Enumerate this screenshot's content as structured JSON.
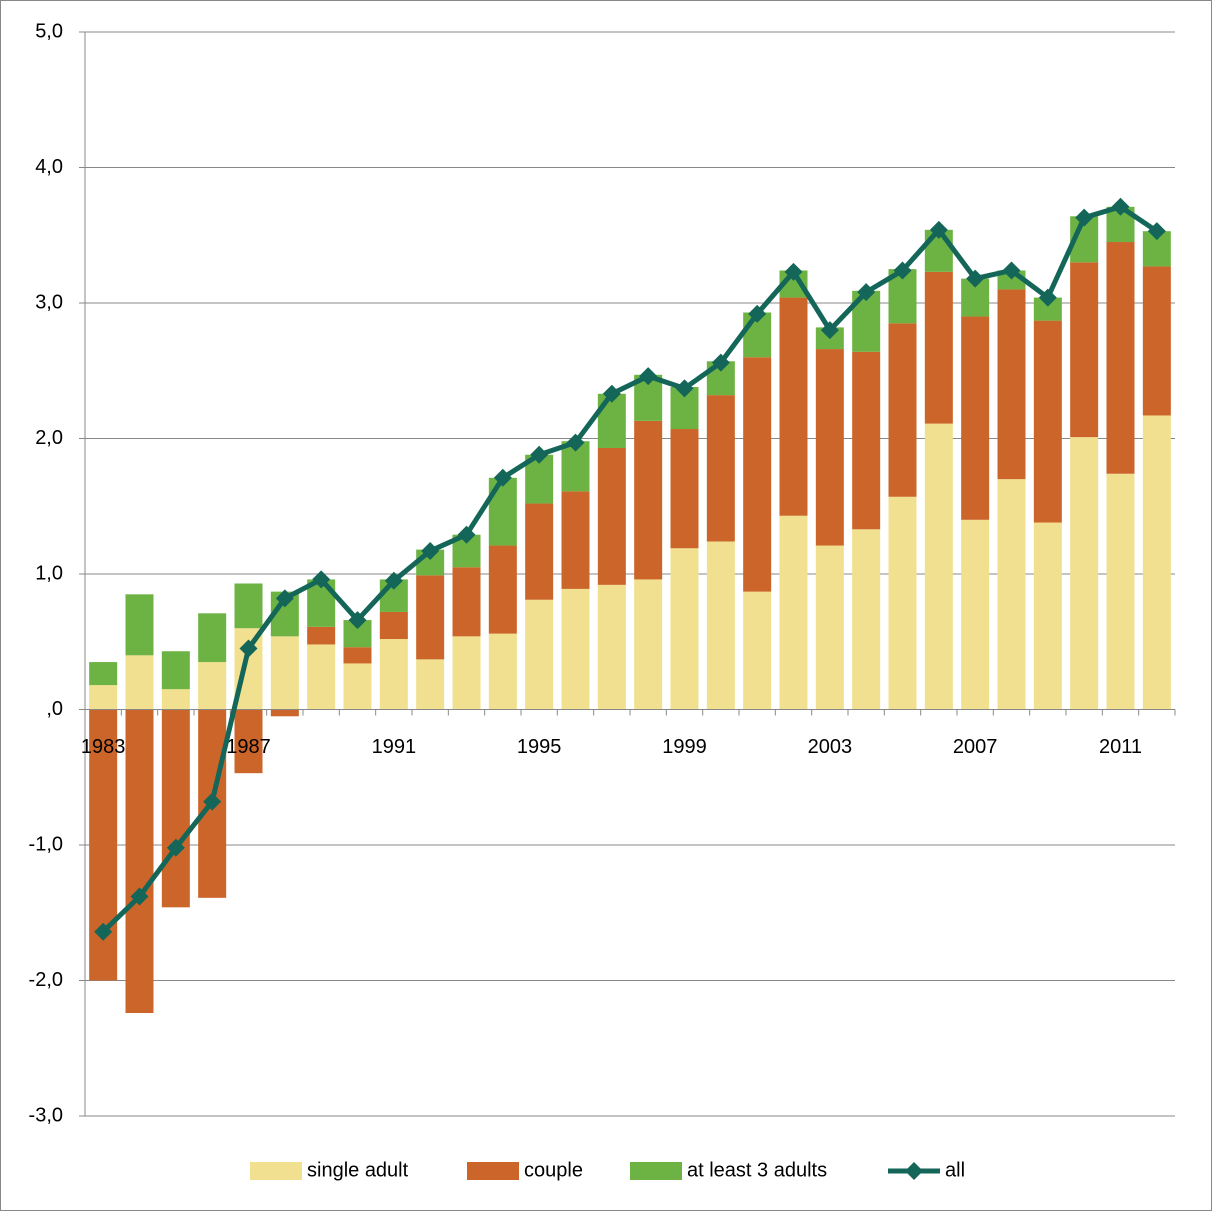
{
  "chart_data": {
    "type": "bar",
    "categories": [
      "1983",
      null,
      null,
      null,
      "1987",
      null,
      null,
      null,
      "1991",
      null,
      null,
      null,
      "1995",
      null,
      null,
      null,
      "1999",
      null,
      null,
      null,
      "2003",
      null,
      null,
      null,
      "2007",
      null,
      null,
      null,
      "2011",
      null
    ],
    "stacked": true,
    "series": [
      {
        "name": "single adult",
        "color": "#f0e08f",
        "values": [
          0.18,
          0.4,
          0.15,
          0.35,
          0.6,
          0.54,
          0.48,
          0.34,
          0.52,
          0.37,
          0.54,
          0.56,
          0.81,
          0.89,
          0.92,
          0.96,
          1.19,
          1.24,
          0.87,
          1.43,
          1.21,
          1.33,
          1.57,
          2.11,
          1.4,
          1.7,
          1.38,
          2.01,
          1.74,
          2.17
        ]
      },
      {
        "name": "couple",
        "color": "#cc6529",
        "values": [
          -2.0,
          -2.24,
          -1.46,
          -1.39,
          -0.47,
          -0.05,
          0.13,
          0.12,
          0.2,
          0.62,
          0.51,
          0.65,
          0.71,
          0.72,
          1.01,
          1.17,
          0.88,
          1.08,
          1.73,
          1.61,
          1.45,
          1.31,
          1.28,
          1.12,
          1.5,
          1.4,
          1.49,
          1.29,
          1.71,
          1.1
        ]
      },
      {
        "name": "at least 3 adults",
        "color": "#6db344",
        "values": [
          0.17,
          0.45,
          0.28,
          0.36,
          0.33,
          0.33,
          0.35,
          0.2,
          0.24,
          0.19,
          0.24,
          0.5,
          0.36,
          0.37,
          0.4,
          0.34,
          0.31,
          0.25,
          0.33,
          0.2,
          0.16,
          0.45,
          0.4,
          0.31,
          0.28,
          0.14,
          0.17,
          0.34,
          0.26,
          0.26
        ]
      },
      {
        "name": "all",
        "type": "line",
        "color": "#136658",
        "values": [
          -1.64,
          -1.38,
          -1.02,
          -0.68,
          0.45,
          0.82,
          0.96,
          0.66,
          0.95,
          1.17,
          1.29,
          1.71,
          1.88,
          1.97,
          2.33,
          2.46,
          2.37,
          2.56,
          2.92,
          3.23,
          2.8,
          3.08,
          3.24,
          3.54,
          3.18,
          3.24,
          3.04,
          3.63,
          3.71,
          3.53
        ]
      }
    ],
    "ylim": [
      -3,
      5
    ],
    "yticks": [
      {
        "value": -3,
        "label": "-3,0"
      },
      {
        "value": -2,
        "label": "-2,0"
      },
      {
        "value": -1,
        "label": "-1,0"
      },
      {
        "value": 0,
        "label": ",0"
      },
      {
        "value": 1,
        "label": "1,0"
      },
      {
        "value": 2,
        "label": "2,0"
      },
      {
        "value": 3,
        "label": "3,0"
      },
      {
        "value": 4,
        "label": "4,0"
      },
      {
        "value": 5,
        "label": "5,0"
      }
    ],
    "grid": true,
    "legend": "bottom"
  }
}
